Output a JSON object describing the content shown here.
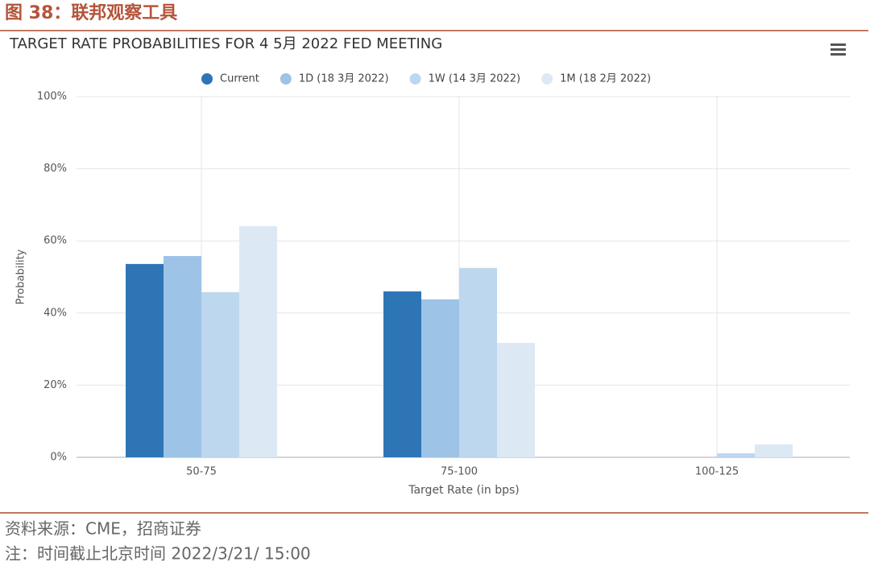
{
  "header": {
    "title": "图 38：联邦观察工具"
  },
  "chart_data": {
    "type": "bar",
    "title": "TARGET RATE PROBABILITIES FOR 4 5月 2022 FED MEETING",
    "x_label": "Target Rate (in bps)",
    "y_label": "Probability",
    "categories": [
      "50-75",
      "75-100",
      "100-125"
    ],
    "series": [
      {
        "name": "Current",
        "color": "#2e75b6",
        "values": [
          53.6,
          46.0,
          0
        ]
      },
      {
        "name": "1D (18 3月 2022)",
        "color": "#9dc3e6",
        "values": [
          55.8,
          43.8,
          0
        ]
      },
      {
        "name": "1W (14 3月 2022)",
        "color": "#bdd7ee",
        "values": [
          45.8,
          52.5,
          1.1
        ]
      },
      {
        "name": "1M (18 2月 2022)",
        "color": "#dce9f5",
        "values": [
          64.1,
          31.7,
          3.6
        ]
      }
    ],
    "ylim": [
      0,
      100
    ],
    "yticks": [
      {
        "value": 0,
        "label": "0%"
      },
      {
        "value": 20,
        "label": "20%"
      },
      {
        "value": 40,
        "label": "40%"
      },
      {
        "value": 60,
        "label": "60%"
      },
      {
        "value": 80,
        "label": "80%"
      },
      {
        "value": 100,
        "label": "100%"
      }
    ],
    "grid": true,
    "legend": "top"
  },
  "footer": {
    "source": "资料来源：CME，招商证券",
    "note": "注：时间截止北京时间 2022/3/21/ 15:00"
  }
}
